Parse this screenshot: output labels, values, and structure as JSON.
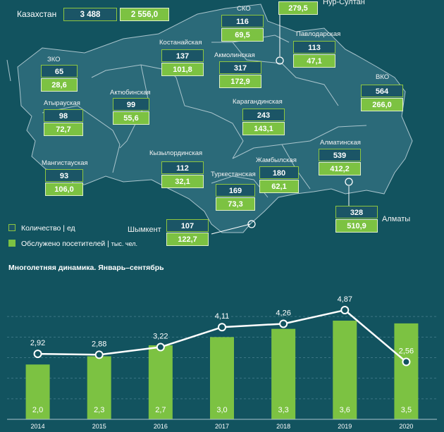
{
  "kazakhstan": {
    "label": "Казахстан",
    "count": "3 488",
    "visitors": "2 556,0"
  },
  "regions": [
    {
      "name": "СКО",
      "count": "116",
      "visitors": "69,5"
    },
    {
      "name": "Нур-Султан",
      "count": "",
      "visitors": "279,5"
    },
    {
      "name": "Павлодарская",
      "count": "113",
      "visitors": "47,1"
    },
    {
      "name": "Костанайская",
      "count": "137",
      "visitors": "101,8"
    },
    {
      "name": "Акмолинская",
      "count": "317",
      "visitors": "172,9"
    },
    {
      "name": "ЗКО",
      "count": "65",
      "visitors": "28,6"
    },
    {
      "name": "ВКО",
      "count": "564",
      "visitors": "266,0"
    },
    {
      "name": "Актюбинская",
      "count": "99",
      "visitors": "55,6"
    },
    {
      "name": "Атырауская",
      "count": "98",
      "visitors": "72,7"
    },
    {
      "name": "Карагандинская",
      "count": "243",
      "visitors": "143,1"
    },
    {
      "name": "Алматинская",
      "count": "539",
      "visitors": "412,2"
    },
    {
      "name": "Кызылординская",
      "count": "112",
      "visitors": "32,1"
    },
    {
      "name": "Мангистауская",
      "count": "93",
      "visitors": "106,0"
    },
    {
      "name": "Жамбылская",
      "count": "180",
      "visitors": "62,1"
    },
    {
      "name": "Туркестанская",
      "count": "169",
      "visitors": "73,3"
    },
    {
      "name": "Алматы",
      "count": "328",
      "visitors": "510,9"
    },
    {
      "name": "Шымкент",
      "count": "107",
      "visitors": "122,7"
    }
  ],
  "legend": {
    "count": "Количество | ед",
    "visitors_main": "Обслужено посетителей | ",
    "visitors_unit": "тыс. чел."
  },
  "colors": {
    "background": "#12535f",
    "count_box": "#1b5566",
    "green": "#7cc242",
    "map": "#2b6a79",
    "border": "#8ec63f"
  },
  "chart_data": {
    "type": "bar",
    "title": "Многолетняя  динамика.  Январь–сентябрь",
    "categories": [
      "2014",
      "2015",
      "2016",
      "2017",
      "2018",
      "2019",
      "2020"
    ],
    "series": [
      {
        "name": "Количество (bars)",
        "type": "bar",
        "values": [
          2.0,
          2.3,
          2.7,
          3.0,
          3.3,
          3.6,
          3.5
        ],
        "labels": [
          "2,0",
          "2,3",
          "2,7",
          "3,0",
          "3,3",
          "3,6",
          "3,5"
        ]
      },
      {
        "name": "Обслужено посетителей (line)",
        "type": "line",
        "values": [
          2.92,
          2.88,
          3.22,
          4.11,
          4.26,
          4.87,
          2.56
        ],
        "labels": [
          "2,92",
          "2,88",
          "3,22",
          "4,11",
          "4,26",
          "4,87",
          "2,56"
        ]
      }
    ],
    "ylim_bars": [
      0,
      4.5
    ],
    "ylim_line": [
      0,
      5.5
    ],
    "grid": true
  }
}
